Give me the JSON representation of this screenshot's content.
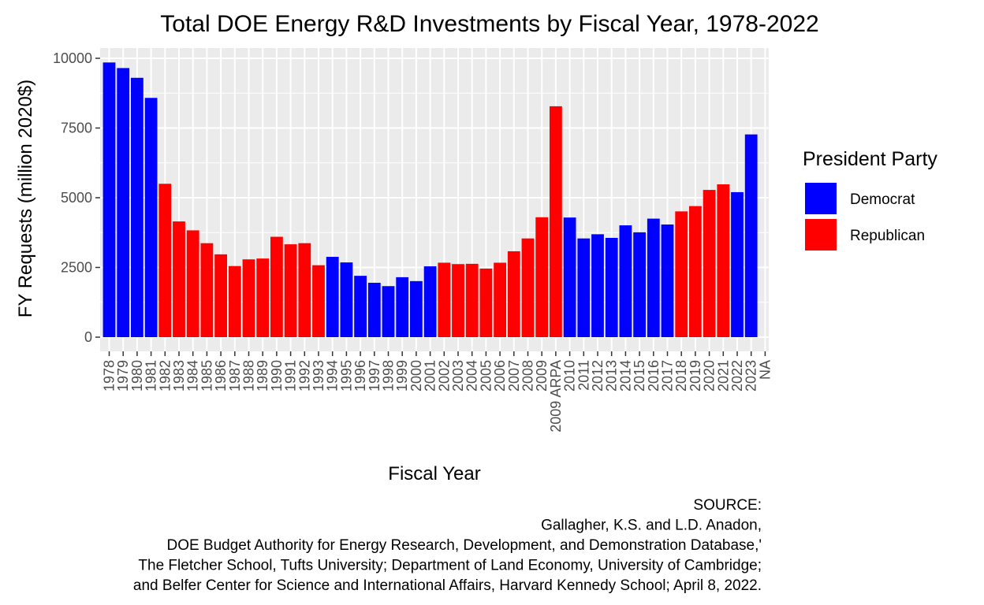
{
  "chart_data": {
    "type": "bar",
    "title": "Total DOE Energy R&D Investments by Fiscal Year, 1978-2022",
    "xlabel": "Fiscal Year",
    "ylabel": "FY Requests (million 2020$)",
    "ylim": [
      0,
      10000
    ],
    "yticks": [
      "0",
      "2500",
      "5000",
      "7500",
      "10000"
    ],
    "grid": true,
    "categories": [
      "1978",
      "1979",
      "1980",
      "1981",
      "1982",
      "1983",
      "1984",
      "1985",
      "1986",
      "1987",
      "1988",
      "1989",
      "1990",
      "1991",
      "1992",
      "1993",
      "1994",
      "1995",
      "1996",
      "1997",
      "1998",
      "1999",
      "2000",
      "2001",
      "2002",
      "2003",
      "2004",
      "2005",
      "2006",
      "2007",
      "2008",
      "2009",
      "2009 ARPA",
      "2010",
      "2011",
      "2012",
      "2013",
      "2014",
      "2015",
      "2016",
      "2017",
      "2018",
      "2019",
      "2020",
      "2021",
      "2022",
      "2023",
      "NA"
    ],
    "values": [
      9850,
      9650,
      9300,
      8580,
      5500,
      4150,
      3830,
      3370,
      2970,
      2550,
      2790,
      2820,
      3600,
      3330,
      3370,
      2580,
      2880,
      2680,
      2200,
      1950,
      1830,
      2150,
      2010,
      2540,
      2670,
      2620,
      2630,
      2460,
      2670,
      3080,
      3540,
      4300,
      8280,
      4290,
      3540,
      3690,
      3560,
      4010,
      3760,
      4250,
      4040,
      4510,
      4700,
      5280,
      5480,
      5200,
      7270,
      null
    ],
    "party": [
      "Democrat",
      "Democrat",
      "Democrat",
      "Democrat",
      "Republican",
      "Republican",
      "Republican",
      "Republican",
      "Republican",
      "Republican",
      "Republican",
      "Republican",
      "Republican",
      "Republican",
      "Republican",
      "Republican",
      "Democrat",
      "Democrat",
      "Democrat",
      "Democrat",
      "Democrat",
      "Democrat",
      "Democrat",
      "Democrat",
      "Republican",
      "Republican",
      "Republican",
      "Republican",
      "Republican",
      "Republican",
      "Republican",
      "Republican",
      "Republican",
      "Democrat",
      "Democrat",
      "Democrat",
      "Democrat",
      "Democrat",
      "Democrat",
      "Democrat",
      "Democrat",
      "Republican",
      "Republican",
      "Republican",
      "Republican",
      "Democrat",
      "Democrat",
      null
    ],
    "legend": {
      "title": "President Party",
      "placement": "right",
      "entries": [
        {
          "name": "Democrat",
          "color": "#0000ff"
        },
        {
          "name": "Republican",
          "color": "#ff0000"
        }
      ]
    },
    "caption": [
      "SOURCE:",
      "Gallagher, K.S. and L.D. Anadon,",
      "DOE Budget Authority for Energy Research, Development, and Demonstration Database,'",
      "The Fletcher School, Tufts University; Department of Land Economy, University of Cambridge;",
      "and Belfer Center for Science and International Affairs, Harvard Kennedy School; April 8, 2022."
    ],
    "colors": {
      "panel": "#ebebeb",
      "grid": "#ffffff",
      "democrat": "#0000ff",
      "republican": "#ff0000"
    }
  }
}
